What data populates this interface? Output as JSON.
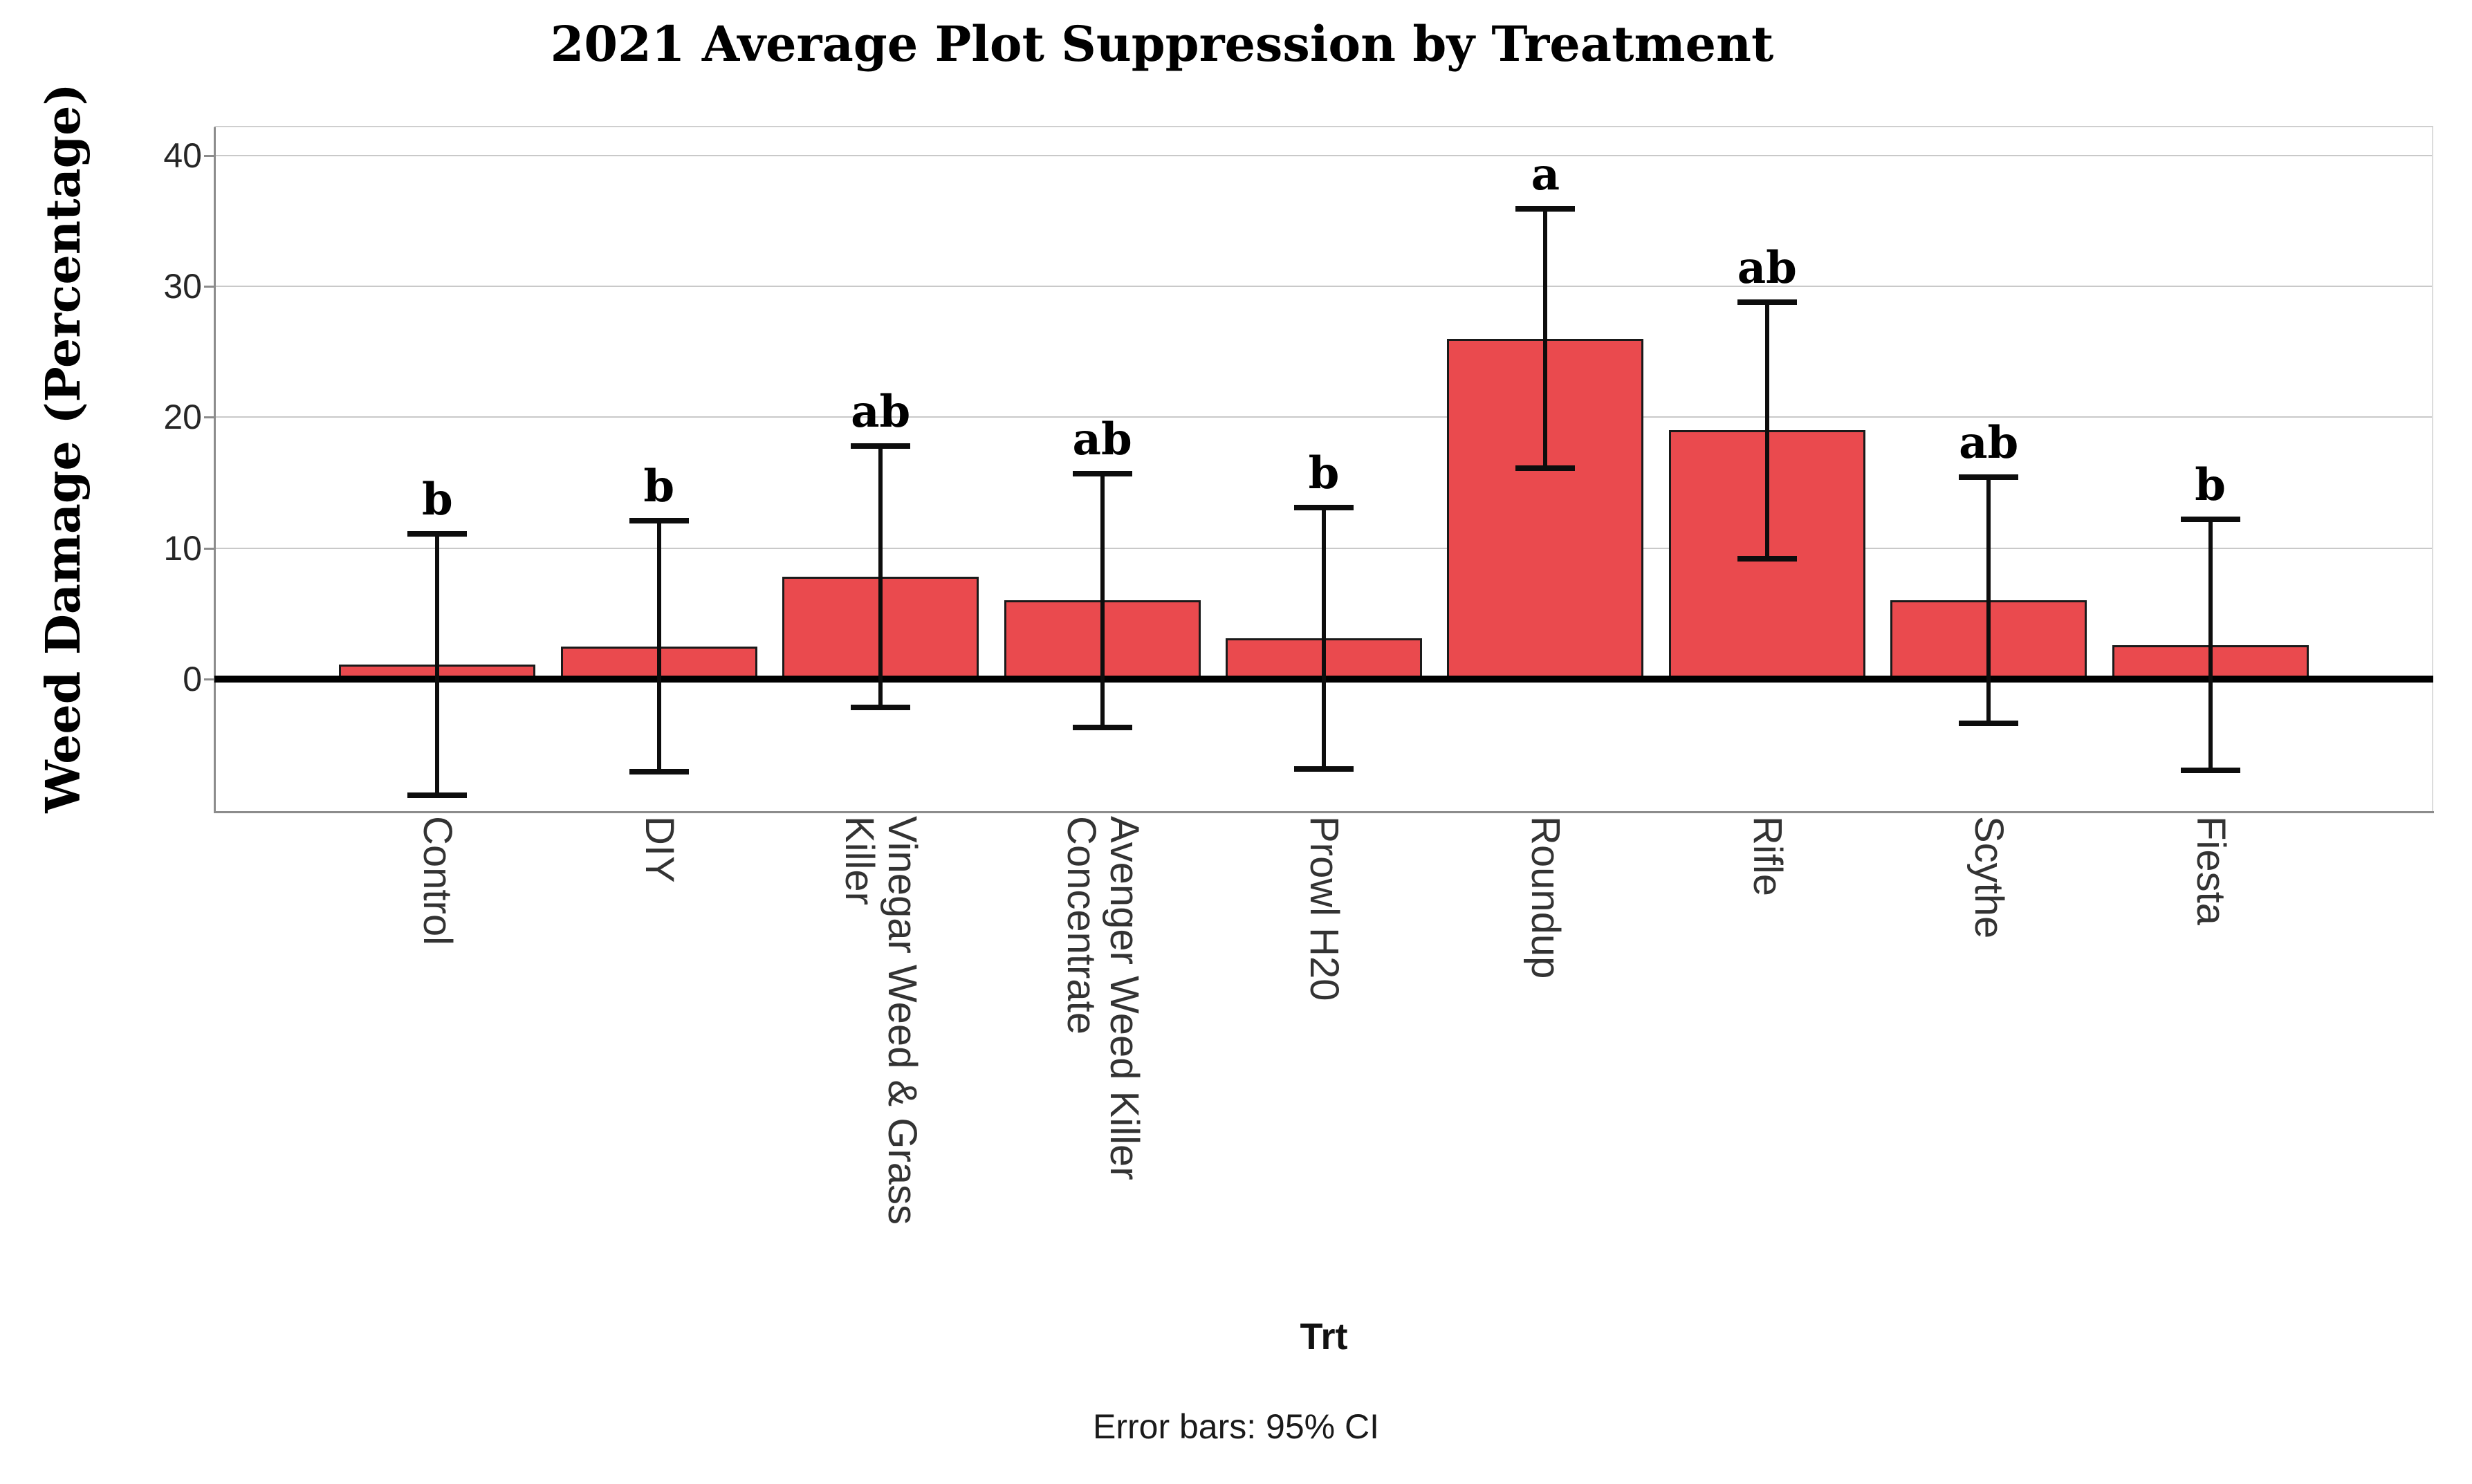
{
  "chart_data": {
    "type": "bar",
    "title": "2021 Average Plot Suppression by Treatment",
    "xlabel": "Trt",
    "ylabel": "Weed Damage (Percentage)",
    "footnote": "Error bars: 95% CI",
    "error_bars": "95% CI",
    "ylim": [
      -10.1,
      42.15
    ],
    "yticks": [
      0,
      10,
      20,
      30,
      40
    ],
    "grid": "horizontal",
    "legend": false,
    "categories": [
      "Control",
      "DIY",
      "Vinegar Weed & Grass Killer",
      "Avenger Weed Killer Concentrate",
      "Prowl H20",
      "Roundup",
      "Rifle",
      "Scythe",
      "Fiesta"
    ],
    "bars": [
      {
        "category": "Control",
        "label_lines": [
          "Control"
        ],
        "value": 1.1,
        "ci_low": -8.9,
        "ci_high": 11.1,
        "sig_letter": "b"
      },
      {
        "category": "DIY",
        "label_lines": [
          "DIY"
        ],
        "value": 2.5,
        "ci_low": -7.1,
        "ci_high": 12.1,
        "sig_letter": "b"
      },
      {
        "category": "Vinegar Weed & Grass Killer",
        "label_lines": [
          "Vinegar Weed & Grass",
          "Killer"
        ],
        "value": 7.8,
        "ci_low": -2.2,
        "ci_high": 17.8,
        "sig_letter": "ab"
      },
      {
        "category": "Avenger Weed Killer Concentrate",
        "label_lines": [
          "Avenger Weed Killer",
          "Concentrate"
        ],
        "value": 6.0,
        "ci_low": -3.7,
        "ci_high": 15.7,
        "sig_letter": "ab"
      },
      {
        "category": "Prowl H20",
        "label_lines": [
          "Prowl H20"
        ],
        "value": 3.1,
        "ci_low": -6.9,
        "ci_high": 13.1,
        "sig_letter": "b"
      },
      {
        "category": "Roundup",
        "label_lines": [
          "Roundup"
        ],
        "value": 26.0,
        "ci_low": 16.1,
        "ci_high": 35.9,
        "sig_letter": "a"
      },
      {
        "category": "Rifle",
        "label_lines": [
          "Rifle"
        ],
        "value": 19.0,
        "ci_low": 9.2,
        "ci_high": 28.8,
        "sig_letter": "ab"
      },
      {
        "category": "Scythe",
        "label_lines": [
          "Scythe"
        ],
        "value": 6.0,
        "ci_low": -3.4,
        "ci_high": 15.4,
        "sig_letter": "ab"
      },
      {
        "category": "Fiesta",
        "label_lines": [
          "Fiesta"
        ],
        "value": 2.6,
        "ci_low": -7.0,
        "ci_high": 12.2,
        "sig_letter": "b"
      }
    ],
    "style": {
      "bar_fill": "#ea4a4e",
      "bar_border": "#1a1a1a",
      "gridline": "#c9c9c9",
      "axis_line": "#8c8c8c",
      "zero_line": "#000000",
      "error_bar": "#0d0d0d",
      "tick_text": "#262626",
      "category_text": "#333333",
      "background": "#ffffff"
    }
  }
}
